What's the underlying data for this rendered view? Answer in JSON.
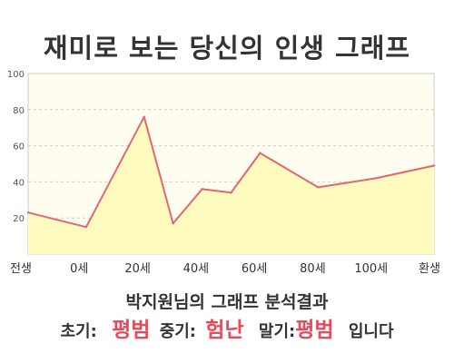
{
  "title": "재미로 보는 당신의 인생 그래프",
  "chart_data": {
    "type": "area",
    "x_labels": [
      "전생",
      "0세",
      "20세",
      "40세",
      "60세",
      "80세",
      "100세",
      "환생"
    ],
    "points": [
      {
        "x": -20,
        "y": 23
      },
      {
        "x": 0,
        "y": 15
      },
      {
        "x": 20,
        "y": 76
      },
      {
        "x": 30,
        "y": 17
      },
      {
        "x": 40,
        "y": 36
      },
      {
        "x": 50,
        "y": 34
      },
      {
        "x": 60,
        "y": 56
      },
      {
        "x": 80,
        "y": 37
      },
      {
        "x": 100,
        "y": 42
      },
      {
        "x": 120,
        "y": 49
      }
    ],
    "y_ticks": [
      20,
      40,
      60,
      80,
      100
    ],
    "ylim": [
      0,
      100
    ],
    "xlim": [
      -20,
      120
    ],
    "grid": true,
    "colors": {
      "line": "#e0686e",
      "fill": "#fffbbf",
      "plot_bg": "#fffdf0",
      "grid": "#cccccc"
    }
  },
  "summary": {
    "title": "박지원님의 그래프 분석결과",
    "early_label": "초기:",
    "early_value": "평범",
    "mid_label": "중기:",
    "mid_value": "험난",
    "late_label": "말기:",
    "late_value": "평범",
    "ending": "입니다"
  }
}
